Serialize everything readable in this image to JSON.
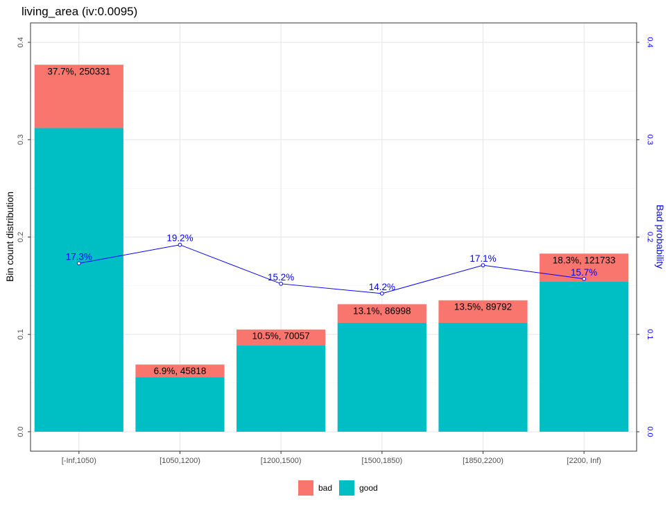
{
  "chart_data": {
    "type": "bar",
    "title": "living_area  (iv:0.0095)",
    "xlabel": "",
    "ylabel": "Bin count distribution",
    "y2label": "Bad probability",
    "ylim": [
      0,
      0.4
    ],
    "y2lim": [
      0,
      0.4
    ],
    "yticks": [
      "0.0",
      "0.1",
      "0.2",
      "0.3",
      "0.4"
    ],
    "y2ticks": [
      "0.0",
      "0.1",
      "0.2",
      "0.3",
      "0.4"
    ],
    "stacked": true,
    "categories": [
      "[-Inf,1050)",
      "[1050,1200)",
      "[1200,1500)",
      "[1500,1850)",
      "[1850,2200)",
      "[2200, Inf)"
    ],
    "series": [
      {
        "name": "bad",
        "color": "#F8766D",
        "values": [
          0.065,
          0.013,
          0.016,
          0.019,
          0.023,
          0.029
        ]
      },
      {
        "name": "good",
        "color": "#00BFC4",
        "values": [
          0.312,
          0.056,
          0.089,
          0.112,
          0.112,
          0.154
        ]
      }
    ],
    "bar_labels": [
      "37.7%, 250331",
      "6.9%, 45818",
      "10.5%, 70057",
      "13.1%, 86998",
      "13.5%, 89792",
      "18.3%, 121733"
    ],
    "bad_probability": {
      "color": "#0000FF",
      "values": [
        0.173,
        0.192,
        0.152,
        0.142,
        0.171,
        0.157
      ],
      "labels": [
        "17.3%",
        "19.2%",
        "15.2%",
        "14.2%",
        "17.1%",
        "15.7%"
      ]
    },
    "legend": {
      "position": "bottom",
      "items": [
        "bad",
        "good"
      ]
    },
    "grid": true
  }
}
